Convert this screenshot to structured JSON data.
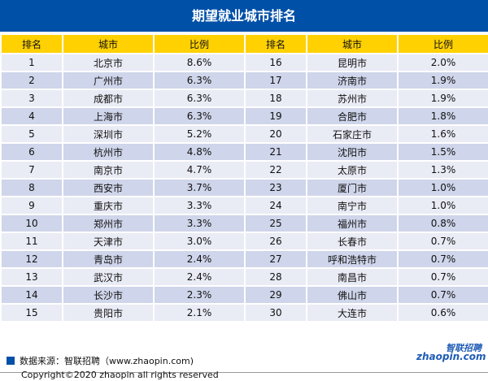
{
  "title": "期望就业城市排名",
  "headers": [
    "排名",
    "城市",
    "比例",
    "排名",
    "城市",
    "比例"
  ],
  "rows": [
    [
      "1",
      "北京市",
      "8.6%",
      "16",
      "昆明市",
      "2.0%"
    ],
    [
      "2",
      "广州市",
      "6.3%",
      "17",
      "济南市",
      "1.9%"
    ],
    [
      "3",
      "成都市",
      "6.3%",
      "18",
      "苏州市",
      "1.9%"
    ],
    [
      "4",
      "上海市",
      "6.3%",
      "19",
      "合肥市",
      "1.8%"
    ],
    [
      "5",
      "深圳市",
      "5.2%",
      "20",
      "石家庄市",
      "1.6%"
    ],
    [
      "6",
      "杭州市",
      "4.8%",
      "21",
      "沈阳市",
      "1.5%"
    ],
    [
      "7",
      "南京市",
      "4.7%",
      "22",
      "太原市",
      "1.3%"
    ],
    [
      "8",
      "西安市",
      "3.7%",
      "23",
      "厦门市",
      "1.0%"
    ],
    [
      "9",
      "重庆市",
      "3.3%",
      "24",
      "南宁市",
      "1.0%"
    ],
    [
      "10",
      "郑州市",
      "3.3%",
      "25",
      "福州市",
      "0.8%"
    ],
    [
      "11",
      "天津市",
      "3.0%",
      "26",
      "长春市",
      "0.7%"
    ],
    [
      "12",
      "青岛市",
      "2.4%",
      "27",
      "呼和浩特市",
      "0.7%"
    ],
    [
      "13",
      "武汉市",
      "2.4%",
      "28",
      "南昌市",
      "0.7%"
    ],
    [
      "14",
      "长沙市",
      "2.3%",
      "29",
      "佛山市",
      "0.7%"
    ],
    [
      "15",
      "贵阳市",
      "2.1%",
      "30",
      "大连市",
      "0.6%"
    ]
  ],
  "source": "数据来源：智联招聘（www.zhaopin.com)",
  "copyright": "Copyright©2020 zhaopin all rights reserved",
  "logo": {
    "cn": "智联招聘",
    "en": "zhaopin.com"
  },
  "colors": {
    "title_bg": "#0050a8",
    "header_bg": "#ffd100",
    "row_light": "#e9ebf5",
    "row_dark": "#cfd5ea"
  }
}
